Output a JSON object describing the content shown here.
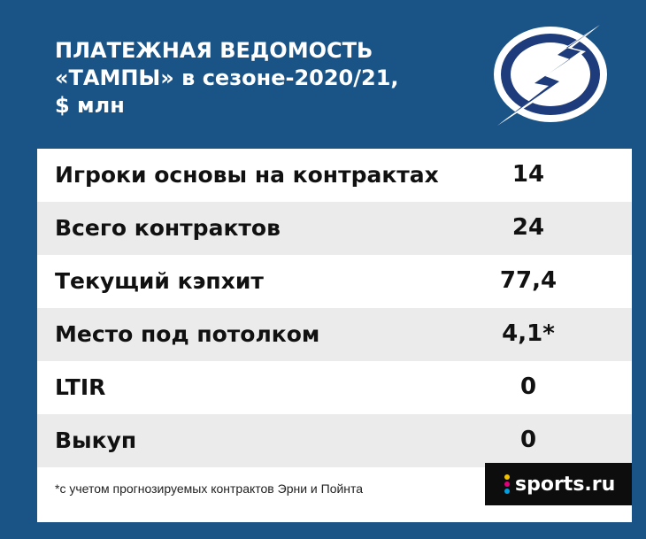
{
  "header": {
    "title_lines": [
      "ПЛАТЕЖНАЯ ВЕДОМОСТЬ",
      "«ТАМПЫ» в сезоне-2020/21,",
      "$ млн"
    ],
    "logo_icon": "tampa-bay-lightning-logo"
  },
  "table": {
    "rows": [
      {
        "label": "Игроки основы на контрактах",
        "value": "14"
      },
      {
        "label": "Всего контрактов",
        "value": "24"
      },
      {
        "label": "Текущий кэпхит",
        "value": "77,4"
      },
      {
        "label": "Место под потолком",
        "value": "4,1*"
      },
      {
        "label": "LTIR",
        "value": "0"
      },
      {
        "label": "Выкуп",
        "value": "0"
      }
    ]
  },
  "footnote": "*с учетом прогнозируемых контрактов Эрни и Пойнта",
  "brand": {
    "text": "sports.ru",
    "icon": "sports-ru-logo"
  },
  "colors": {
    "background": "#1a5486",
    "row_shade": "#ebebeb",
    "brand_bg": "#0d0d0d"
  }
}
